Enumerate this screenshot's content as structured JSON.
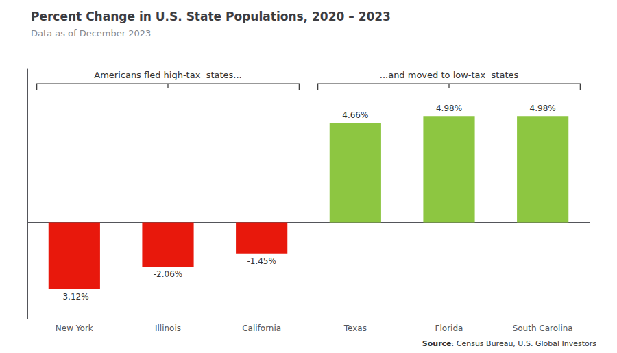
{
  "chart_data": {
    "type": "bar",
    "title": "Percent Change in U.S. State Populations, 2020 – 2023",
    "subtitle": "Data as of December 2023",
    "source": [
      "Source",
      ": Census Bureau, U.S. Global Investors"
    ],
    "annotations": [
      "Americans fled high-tax  states...",
      "...and moved to low-tax  states"
    ],
    "categories": [
      "New York",
      "Illinois",
      "California",
      "Texas",
      "Florida",
      "South Carolina"
    ],
    "values": [
      -3.12,
      -2.06,
      -1.45,
      4.66,
      4.98,
      4.98
    ],
    "value_labels": [
      "-3.12%",
      "-2.06%",
      "-1.45%",
      "4.66%",
      "4.98%",
      "4.98%"
    ],
    "colors": [
      "#e8180c",
      "#e8180c",
      "#e8180c",
      "#8dc641",
      "#8dc641",
      "#8dc641"
    ],
    "ylim": [
      -4.5,
      7.2
    ],
    "data_labels": true,
    "tick_labels": "x",
    "grid": false
  }
}
